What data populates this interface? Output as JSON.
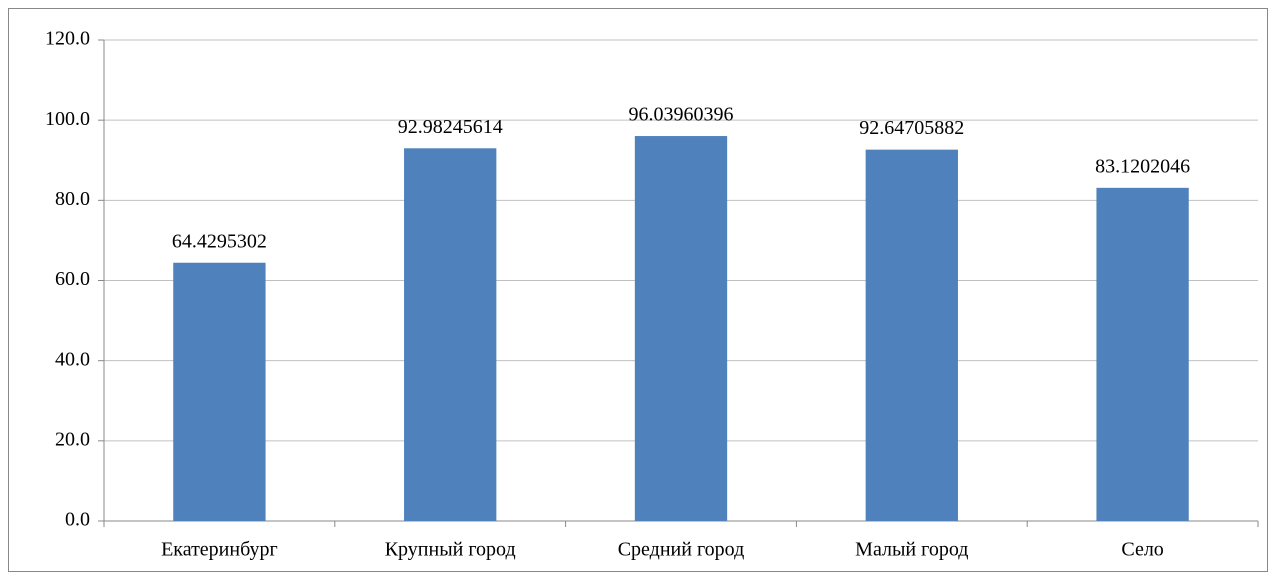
{
  "chart_data": {
    "type": "bar",
    "categories": [
      "Екатеринбург",
      "Крупный город",
      "Средний город",
      "Малый город",
      "Село"
    ],
    "values": [
      64.4295302,
      92.98245614,
      96.03960396,
      92.64705882,
      83.1202046
    ],
    "color": "#4f81bd",
    "ylim": [
      0,
      120
    ],
    "yticks": [
      {
        "value": 0,
        "label": "0.0"
      },
      {
        "value": 20,
        "label": "20.0"
      },
      {
        "value": 40,
        "label": "40.0"
      },
      {
        "value": 60,
        "label": "60.0"
      },
      {
        "value": 80,
        "label": "80.0"
      },
      {
        "value": 100,
        "label": "100.0"
      },
      {
        "value": 120,
        "label": "120.0"
      }
    ],
    "grid": true
  }
}
